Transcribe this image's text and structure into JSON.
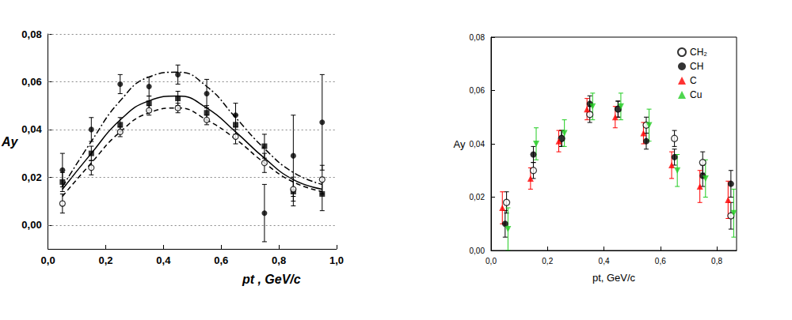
{
  "chart_data": [
    {
      "type": "scatter",
      "x_label": "pt , GeV/c",
      "y_label": "Ay",
      "xlim": [
        0,
        1
      ],
      "ylim": [
        -0.01,
        0.08
      ],
      "xticks": [
        {
          "value": 0,
          "label": "0,0"
        },
        {
          "value": 0.2,
          "label": "0,2"
        },
        {
          "value": 0.4,
          "label": "0,4"
        },
        {
          "value": 0.6,
          "label": "0,6"
        },
        {
          "value": 0.8,
          "label": "0,8"
        },
        {
          "value": 1,
          "label": "1,0"
        }
      ],
      "yticks": [
        {
          "value": 0,
          "label": "0,00"
        },
        {
          "value": 0.02,
          "label": "0,02"
        },
        {
          "value": 0.04,
          "label": "0,04"
        },
        {
          "value": 0.06,
          "label": "0,06"
        },
        {
          "value": 0.08,
          "label": "0,08"
        }
      ],
      "grid": true,
      "series": [
        {
          "type": "line",
          "color": "#000000",
          "line_style": "dashdot",
          "x": [
            0.05,
            0.15,
            0.25,
            0.35,
            0.45,
            0.55,
            0.65,
            0.75,
            0.85,
            0.95
          ],
          "values": [
            0.016,
            0.035,
            0.052,
            0.062,
            0.064,
            0.058,
            0.045,
            0.032,
            0.022,
            0.017
          ]
        },
        {
          "type": "line",
          "color": "#000000",
          "line_style": "solid",
          "x": [
            0.05,
            0.15,
            0.25,
            0.35,
            0.45,
            0.55,
            0.65,
            0.75,
            0.85,
            0.95
          ],
          "values": [
            0.015,
            0.03,
            0.044,
            0.052,
            0.054,
            0.049,
            0.039,
            0.028,
            0.019,
            0.015
          ]
        },
        {
          "type": "line",
          "color": "#000000",
          "line_style": "dashed",
          "x": [
            0.05,
            0.15,
            0.25,
            0.35,
            0.45,
            0.55,
            0.65,
            0.75,
            0.85,
            0.95
          ],
          "values": [
            0.012,
            0.026,
            0.039,
            0.047,
            0.049,
            0.044,
            0.036,
            0.026,
            0.018,
            0.014
          ]
        },
        {
          "type": "scatter",
          "color": "#000000",
          "marker": "circle",
          "x": [
            0.05,
            0.15,
            0.25,
            0.35,
            0.45,
            0.55,
            0.65,
            0.75,
            0.85,
            0.95
          ],
          "values": [
            0.023,
            0.04,
            0.059,
            0.058,
            0.063,
            0.055,
            0.046,
            0.005,
            0.029,
            0.043
          ],
          "errors": [
            0.007,
            0.005,
            0.004,
            0.004,
            0.004,
            0.006,
            0.005,
            0.012,
            0.017,
            0.02
          ]
        },
        {
          "type": "scatter",
          "color": "#000000",
          "marker": "square",
          "x": [
            0.05,
            0.15,
            0.25,
            0.35,
            0.45,
            0.55,
            0.65,
            0.75,
            0.85,
            0.95
          ],
          "values": [
            0.018,
            0.03,
            0.042,
            0.051,
            0.053,
            0.047,
            0.042,
            0.033,
            0.014,
            0.013
          ],
          "errors": [
            0.004,
            0.003,
            0.003,
            0.003,
            0.003,
            0.003,
            0.004,
            0.005,
            0.006,
            0.007
          ]
        },
        {
          "type": "scatter",
          "color": "#000000",
          "marker": "circle-open",
          "x": [
            0.05,
            0.15,
            0.25,
            0.35,
            0.45,
            0.55,
            0.65,
            0.75,
            0.85,
            0.95
          ],
          "values": [
            0.009,
            0.024,
            0.039,
            0.048,
            0.049,
            0.044,
            0.037,
            0.026,
            0.015,
            0.019
          ],
          "errors": [
            0.004,
            0.003,
            0.002,
            0.002,
            0.002,
            0.002,
            0.003,
            0.004,
            0.005,
            0.006
          ]
        }
      ]
    },
    {
      "type": "scatter",
      "x_label": "pt, GeV/c",
      "y_label": "Ay",
      "xlim": [
        0,
        0.87
      ],
      "ylim": [
        0,
        0.08
      ],
      "xticks": [
        {
          "value": 0,
          "label": "0,0"
        },
        {
          "value": 0.2,
          "label": "0,2"
        },
        {
          "value": 0.4,
          "label": "0,4"
        },
        {
          "value": 0.6,
          "label": "0,6"
        },
        {
          "value": 0.8,
          "label": "0,8"
        }
      ],
      "yticks": [
        {
          "value": 0,
          "label": "0,00"
        },
        {
          "value": 0.02,
          "label": "0,02"
        },
        {
          "value": 0.04,
          "label": "0,04"
        },
        {
          "value": 0.06,
          "label": "0,06"
        },
        {
          "value": 0.08,
          "label": "0,08"
        }
      ],
      "grid": false,
      "legend": "upper right",
      "series": [
        {
          "name": "CH₂",
          "type": "scatter",
          "color": "#000000",
          "marker": "circle-open",
          "x": [
            0.055,
            0.15,
            0.25,
            0.35,
            0.45,
            0.55,
            0.65,
            0.75,
            0.85
          ],
          "values": [
            0.018,
            0.03,
            0.042,
            0.051,
            0.053,
            0.047,
            0.042,
            0.033,
            0.013
          ],
          "errors": [
            0.004,
            0.003,
            0.003,
            0.003,
            0.003,
            0.003,
            0.003,
            0.004,
            0.005
          ]
        },
        {
          "name": "CH",
          "type": "scatter",
          "color": "#000000",
          "marker": "circle",
          "x": [
            0.05,
            0.15,
            0.25,
            0.35,
            0.45,
            0.55,
            0.65,
            0.75,
            0.85
          ],
          "values": [
            0.01,
            0.036,
            0.042,
            0.055,
            0.053,
            0.041,
            0.035,
            0.028,
            0.025
          ],
          "errors": [
            0.005,
            0.003,
            0.003,
            0.003,
            0.003,
            0.003,
            0.003,
            0.004,
            0.005
          ]
        },
        {
          "name": "C",
          "type": "scatter",
          "color": "#ff0000",
          "marker": "triangle",
          "x": [
            0.04,
            0.14,
            0.24,
            0.34,
            0.44,
            0.54,
            0.64,
            0.74,
            0.84
          ],
          "values": [
            0.016,
            0.027,
            0.041,
            0.053,
            0.05,
            0.044,
            0.032,
            0.024,
            0.019
          ],
          "errors": [
            0.006,
            0.004,
            0.004,
            0.004,
            0.004,
            0.004,
            0.005,
            0.006,
            0.007
          ]
        },
        {
          "name": "Cu",
          "type": "scatter",
          "color": "#22cc22",
          "marker": "triangle-down",
          "x": [
            0.06,
            0.16,
            0.26,
            0.36,
            0.46,
            0.56,
            0.66,
            0.76,
            0.86
          ],
          "values": [
            0.008,
            0.04,
            0.044,
            0.054,
            0.054,
            0.047,
            0.03,
            0.027,
            0.014
          ],
          "errors": [
            0.008,
            0.006,
            0.005,
            0.005,
            0.005,
            0.006,
            0.006,
            0.007,
            0.009
          ]
        }
      ]
    }
  ]
}
